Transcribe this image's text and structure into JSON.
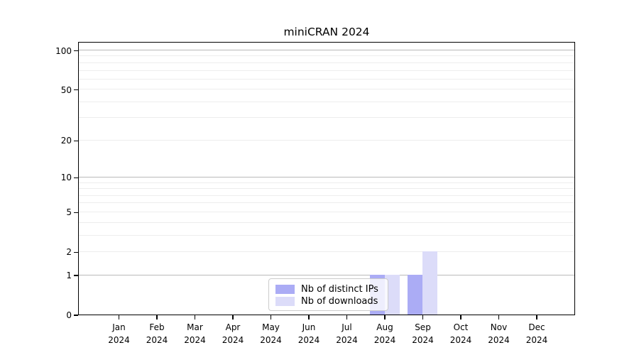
{
  "figure": {
    "title": "miniCRAN 2024"
  },
  "chart_data": {
    "type": "bar",
    "title": "miniCRAN 2024",
    "categories": [
      "Jan 2024",
      "Feb 2024",
      "Mar 2024",
      "Apr 2024",
      "May 2024",
      "Jun 2024",
      "Jul 2024",
      "Aug 2024",
      "Sep 2024",
      "Oct 2024",
      "Nov 2024",
      "Dec 2024"
    ],
    "series": [
      {
        "name": "Nb of distinct IPs",
        "key": "distinct-ips",
        "color": "#abacf5",
        "values": [
          0,
          0,
          0,
          0,
          0,
          0,
          0,
          1,
          1,
          0,
          0,
          0
        ]
      },
      {
        "name": "Nb of downloads",
        "key": "downloads",
        "color": "#dcdcf9",
        "values": [
          0,
          0,
          0,
          0,
          0,
          0,
          0,
          1,
          2,
          0,
          0,
          0
        ]
      }
    ],
    "xlabel": "",
    "ylabel": "",
    "yscale": "log1p",
    "ylim": [
      0,
      117
    ],
    "ytick_labels": [
      0,
      1,
      2,
      5,
      10,
      20,
      50,
      100
    ],
    "ytick_minor": [
      3,
      4,
      6,
      7,
      8,
      9,
      30,
      40,
      60,
      70,
      80,
      90
    ],
    "grid": {
      "emphasized_ticks": [
        1,
        10,
        100
      ],
      "major_color": "#b9b9b9",
      "minor_color": "#ededed",
      "grid_on": true
    },
    "legend": {
      "position": "lower center",
      "entries": [
        "Nb of distinct IPs",
        "Nb of downloads"
      ]
    },
    "axis_color": "#000000",
    "background_color": "#ffffff"
  }
}
